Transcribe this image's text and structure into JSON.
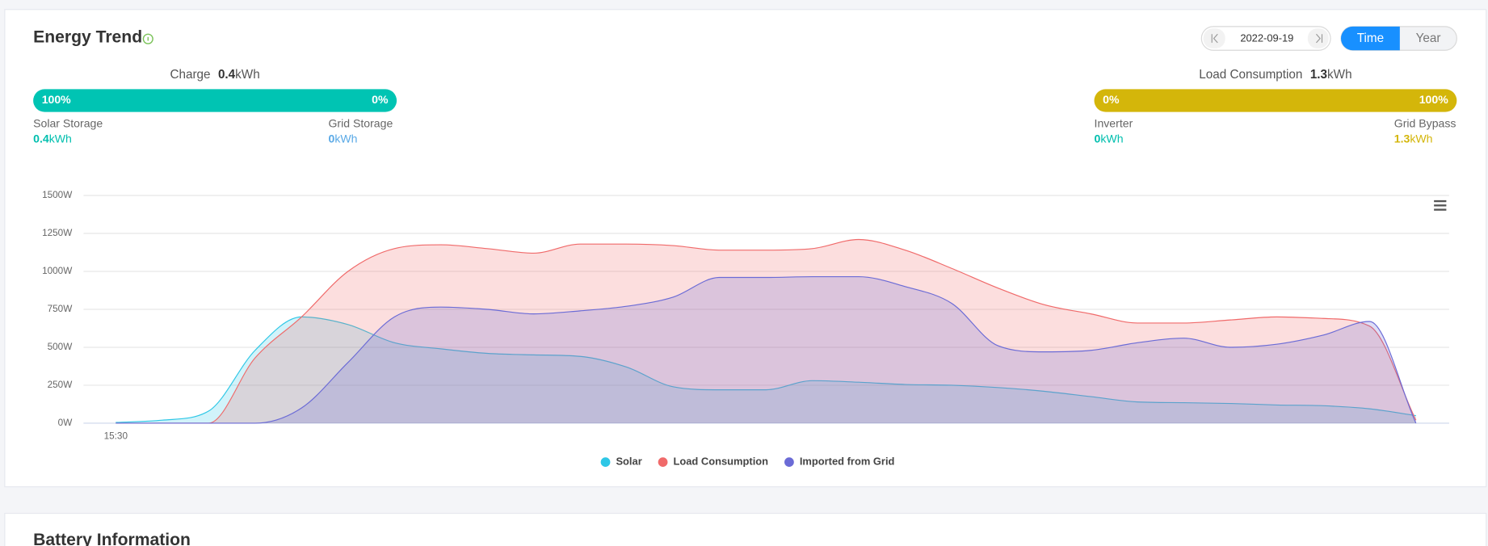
{
  "header": {
    "title": "Energy Trend",
    "date": "2022-09-19",
    "tabs": [
      "Time",
      "Year"
    ]
  },
  "charge": {
    "label": "Charge",
    "total": "0.4",
    "unit": "kWh",
    "left_pct": "100%",
    "right_pct": "0%",
    "left_name": "Solar Storage",
    "left_value": "0.4",
    "right_name": "Grid Storage",
    "right_value": "0"
  },
  "load": {
    "label": "Load Consumption",
    "total": "1.3",
    "unit": "kWh",
    "left_pct": "0%",
    "right_pct": "100%",
    "left_name": "Inverter",
    "left_value": "0",
    "right_name": "Grid Bypass",
    "right_value": "1.3"
  },
  "chart_data": {
    "type": "area",
    "categories": [
      "15:30",
      null,
      null,
      null,
      null,
      null,
      null,
      null,
      null,
      null,
      null,
      null,
      null,
      null,
      null,
      null,
      null,
      null,
      null,
      null,
      null,
      null,
      null,
      null,
      null,
      null,
      null,
      null,
      null
    ],
    "series": [
      {
        "name": "Solar",
        "color": "#2ec7e6",
        "values": [
          5,
          20,
          80,
          480,
          700,
          650,
          530,
          490,
          460,
          450,
          440,
          370,
          240,
          220,
          220,
          280,
          270,
          255,
          250,
          235,
          210,
          175,
          140,
          135,
          130,
          120,
          115,
          95,
          50
        ]
      },
      {
        "name": "Load Consumption",
        "color": "#f06a6a",
        "values": [
          0,
          0,
          0,
          430,
          700,
          1000,
          1150,
          1175,
          1150,
          1120,
          1180,
          1180,
          1170,
          1140,
          1140,
          1150,
          1210,
          1140,
          1020,
          890,
          780,
          720,
          660,
          660,
          680,
          700,
          690,
          640,
          20
        ]
      },
      {
        "name": "Imported from Grid",
        "color": "#6b6bd6",
        "values": [
          0,
          0,
          0,
          0,
          100,
          400,
          700,
          765,
          750,
          720,
          740,
          770,
          830,
          960,
          960,
          965,
          965,
          900,
          790,
          510,
          470,
          480,
          530,
          560,
          500,
          520,
          580,
          670,
          0
        ]
      }
    ],
    "ylim": [
      0,
      1500
    ],
    "yticks": [
      {
        "value": 0,
        "label": "0W"
      },
      {
        "value": 250,
        "label": "250W"
      },
      {
        "value": 500,
        "label": "500W"
      },
      {
        "value": 750,
        "label": "750W"
      },
      {
        "value": 1000,
        "label": "1000W"
      },
      {
        "value": 1250,
        "label": "1250W"
      },
      {
        "value": 1500,
        "label": "1500W"
      }
    ],
    "grid": true
  },
  "battery": {
    "title": "Battery Information"
  }
}
